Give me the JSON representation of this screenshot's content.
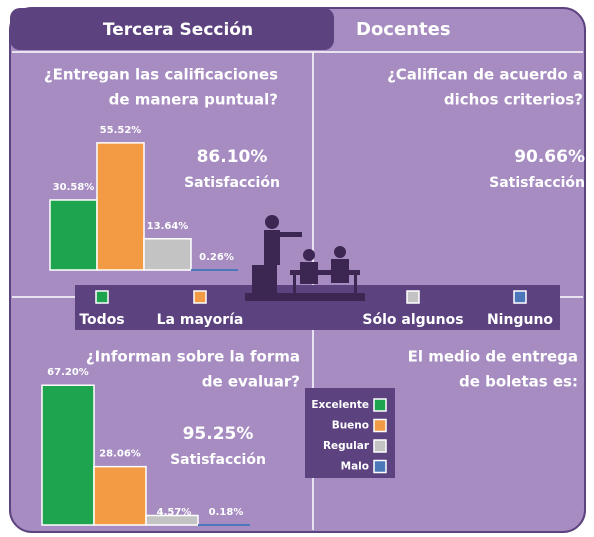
{
  "header": {
    "section": "Tercera Sección",
    "group": "Docentes"
  },
  "chart_data": [
    {
      "type": "bar",
      "title": [
        "¿Entregan las calificaciones",
        "de manera puntual?"
      ],
      "categories": [
        "Todos",
        "La mayoría",
        "Sólo algunos",
        "Ninguno"
      ],
      "values": [
        30.58,
        55.52,
        13.64,
        0.26
      ],
      "value_labels": [
        "30.58%",
        "55.52%",
        "13.64%",
        "0.26%"
      ],
      "colors": [
        "#1ea34f",
        "#f39a45",
        "#c3c3c3",
        "#4a78b8"
      ],
      "annotation": [
        "86.10%",
        "Satisfacción"
      ]
    },
    {
      "type": "text",
      "title": [
        "¿Califican de acuerdo a",
        "dichos criterios?"
      ],
      "annotation": [
        "90.66%",
        "Satisfacción"
      ]
    },
    {
      "type": "bar",
      "title": [
        "¿Informan sobre la forma",
        "de evaluar?"
      ],
      "categories": [
        "Excelente",
        "Bueno",
        "Regular",
        "Malo"
      ],
      "values": [
        67.2,
        28.06,
        4.57,
        0.18
      ],
      "value_labels": [
        "67.20%",
        "28.06%",
        "4.57%",
        "0.18%"
      ],
      "colors": [
        "#1ea34f",
        "#f39a45",
        "#c3c3c3",
        "#4a78b8"
      ],
      "annotation": [
        "95.25%",
        "Satisfacción"
      ]
    },
    {
      "type": "text",
      "title": [
        "El medio de entrega",
        "de boletas es:"
      ]
    }
  ]
}
